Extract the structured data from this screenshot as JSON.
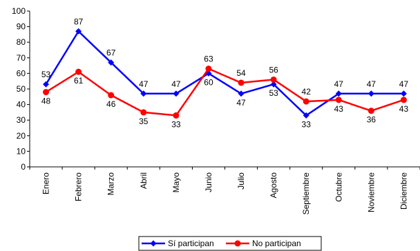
{
  "chart_data": {
    "type": "line",
    "title": "",
    "xlabel": "",
    "ylabel": "",
    "categories": [
      "Enero",
      "Febrero",
      "Marzo",
      "Abril",
      "Mayo",
      "Junio",
      "Julio",
      "Agosto",
      "Septiembre",
      "Octubre",
      "Noviembre",
      "Diciembre"
    ],
    "ylim": [
      0,
      100
    ],
    "yticks": [
      "0",
      "10",
      "20",
      "30",
      "40",
      "50",
      "60",
      "70",
      "80",
      "90",
      "100"
    ],
    "grid": false,
    "legend_position": "bottom",
    "series": [
      {
        "name": "Sí participan",
        "color": "#0000ff",
        "marker": "diamond",
        "values": [
          53,
          87,
          67,
          47,
          47,
          60,
          47,
          53,
          33,
          47,
          47,
          47
        ],
        "labels": [
          "53",
          "87",
          "67",
          "47",
          "47",
          "60",
          "47",
          "53",
          "33",
          "47",
          "47",
          "47"
        ]
      },
      {
        "name": "No participan",
        "color": "#ff0000",
        "marker": "circle",
        "values": [
          48,
          61,
          46,
          35,
          33,
          63,
          54,
          56,
          42,
          43,
          36,
          43
        ],
        "labels": [
          "48",
          "61",
          "46",
          "35",
          "33",
          "63",
          "54",
          "56",
          "42",
          "43",
          "36",
          "43"
        ]
      }
    ]
  }
}
